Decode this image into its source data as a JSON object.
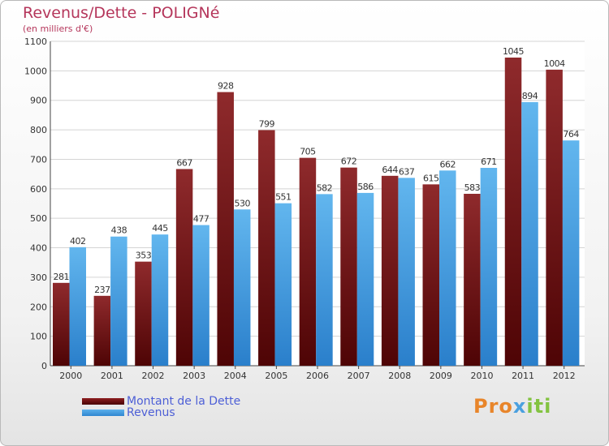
{
  "chart_data": {
    "type": "bar",
    "title": "Revenus/Dette - POLIGNé",
    "subtitle": "(en milliers d'€)",
    "categories": [
      "2000",
      "2001",
      "2002",
      "2003",
      "2004",
      "2005",
      "2006",
      "2007",
      "2008",
      "2009",
      "2010",
      "2011",
      "2012"
    ],
    "series": [
      {
        "name": "Montant de la Dette",
        "color": "#7a1214",
        "values": [
          281,
          237,
          353,
          667,
          928,
          799,
          705,
          672,
          644,
          615,
          583,
          1045,
          1004
        ]
      },
      {
        "name": "Revenus",
        "color": "#3f9be0",
        "values": [
          402,
          438,
          445,
          477,
          530,
          551,
          582,
          586,
          637,
          662,
          671,
          894,
          764
        ]
      }
    ],
    "ylim": [
      0,
      1100
    ],
    "yticks": [
      0,
      100,
      200,
      300,
      400,
      500,
      600,
      700,
      800,
      900,
      1000,
      1100
    ],
    "grid": true,
    "legend": "bottom-left"
  },
  "logo": {
    "text": "Proxiti"
  }
}
